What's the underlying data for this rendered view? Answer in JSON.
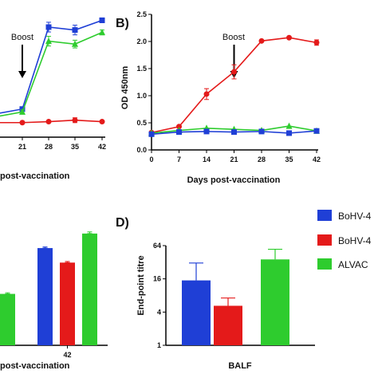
{
  "chart_data": [
    {
      "id": "A",
      "type": "line",
      "panel_label": "",
      "xlabel": "post-vaccination",
      "ylabel": "",
      "x": [
        21,
        28,
        35,
        42
      ],
      "xticks": [
        "21",
        "28",
        "35",
        "42"
      ],
      "annotation": "Boost",
      "annotation_x": 21,
      "series": [
        {
          "color": "#1f3fd6",
          "marker": "square",
          "values": [
            0.58,
            2.27,
            2.21,
            2.41
          ],
          "err": [
            0.04,
            0.1,
            0.1,
            0.05
          ]
        },
        {
          "color": "#2ecc2e",
          "marker": "triangle",
          "values": [
            0.52,
            1.98,
            1.92,
            2.16
          ],
          "err": [
            0.04,
            0.1,
            0.08,
            0.05
          ]
        },
        {
          "color": "#e41a1a",
          "marker": "circle",
          "values": [
            0.3,
            0.32,
            0.35,
            0.32
          ],
          "err": [
            0.02,
            0.02,
            0.05,
            0.02
          ]
        }
      ]
    },
    {
      "id": "B",
      "type": "line",
      "panel_label": "B)",
      "xlabel": "Days post-vaccination",
      "ylabel": "OD 450nm",
      "x": [
        0,
        7,
        14,
        21,
        28,
        35,
        42
      ],
      "xticks": [
        "0",
        "7",
        "14",
        "21",
        "28",
        "35",
        "42"
      ],
      "ylim": [
        0,
        2.5
      ],
      "yticks": [
        "0.0",
        "0.5",
        "1.0",
        "1.5",
        "2.0",
        "2.5"
      ],
      "annotation": "Boost",
      "annotation_x": 21,
      "series": [
        {
          "color": "#e41a1a",
          "marker": "circle",
          "values": [
            0.32,
            0.43,
            1.03,
            1.44,
            2.01,
            2.07,
            1.98
          ],
          "err": [
            0.02,
            0.03,
            0.1,
            0.13,
            0.02,
            0.03,
            0.05
          ]
        },
        {
          "color": "#2ecc2e",
          "marker": "triangle",
          "values": [
            0.31,
            0.36,
            0.4,
            0.38,
            0.36,
            0.44,
            0.35
          ],
          "err": [
            0.02,
            0.02,
            0.02,
            0.02,
            0.02,
            0.02,
            0.02
          ]
        },
        {
          "color": "#1f3fd6",
          "marker": "square",
          "values": [
            0.29,
            0.33,
            0.34,
            0.33,
            0.34,
            0.31,
            0.35
          ],
          "err": [
            0.02,
            0.02,
            0.02,
            0.02,
            0.02,
            0.02,
            0.02
          ]
        }
      ]
    },
    {
      "id": "C",
      "type": "bar",
      "panel_label": "",
      "xlabel": "post-vaccination",
      "ylabel": "",
      "groups": [
        {
          "label": "",
          "bars": [
            {
              "color": "#2ecc2e",
              "value": 0.46,
              "err": 0.01
            }
          ]
        },
        {
          "label": "42",
          "bars": [
            {
              "color": "#1f3fd6",
              "value": 0.87,
              "err": 0.01
            },
            {
              "color": "#e41a1a",
              "value": 0.74,
              "err": 0.01
            },
            {
              "color": "#2ecc2e",
              "value": 1.0,
              "err": 0.015
            }
          ]
        }
      ]
    },
    {
      "id": "D",
      "type": "bar",
      "panel_label": "D)",
      "xlabel": "BALF",
      "ylabel": "End-point titre",
      "yscale": "log",
      "ylim": [
        1,
        64
      ],
      "yticks": [
        "1",
        "4",
        "16",
        "64"
      ],
      "categories": [
        "BoHV-4",
        "BoHV-4",
        "ALVAC"
      ],
      "bars": [
        {
          "color": "#1f3fd6",
          "value": 15,
          "err_upper": 31
        },
        {
          "color": "#e41a1a",
          "value": 5.2,
          "err_upper": 7.2
        },
        {
          "color": "#2ecc2e",
          "value": 36,
          "err_upper": 55
        }
      ]
    }
  ],
  "legend": [
    {
      "label": "BoHV-4",
      "color": "#1f3fd6"
    },
    {
      "label": "BoHV-4",
      "color": "#e41a1a"
    },
    {
      "label": "ALVAC",
      "color": "#2ecc2e"
    }
  ]
}
